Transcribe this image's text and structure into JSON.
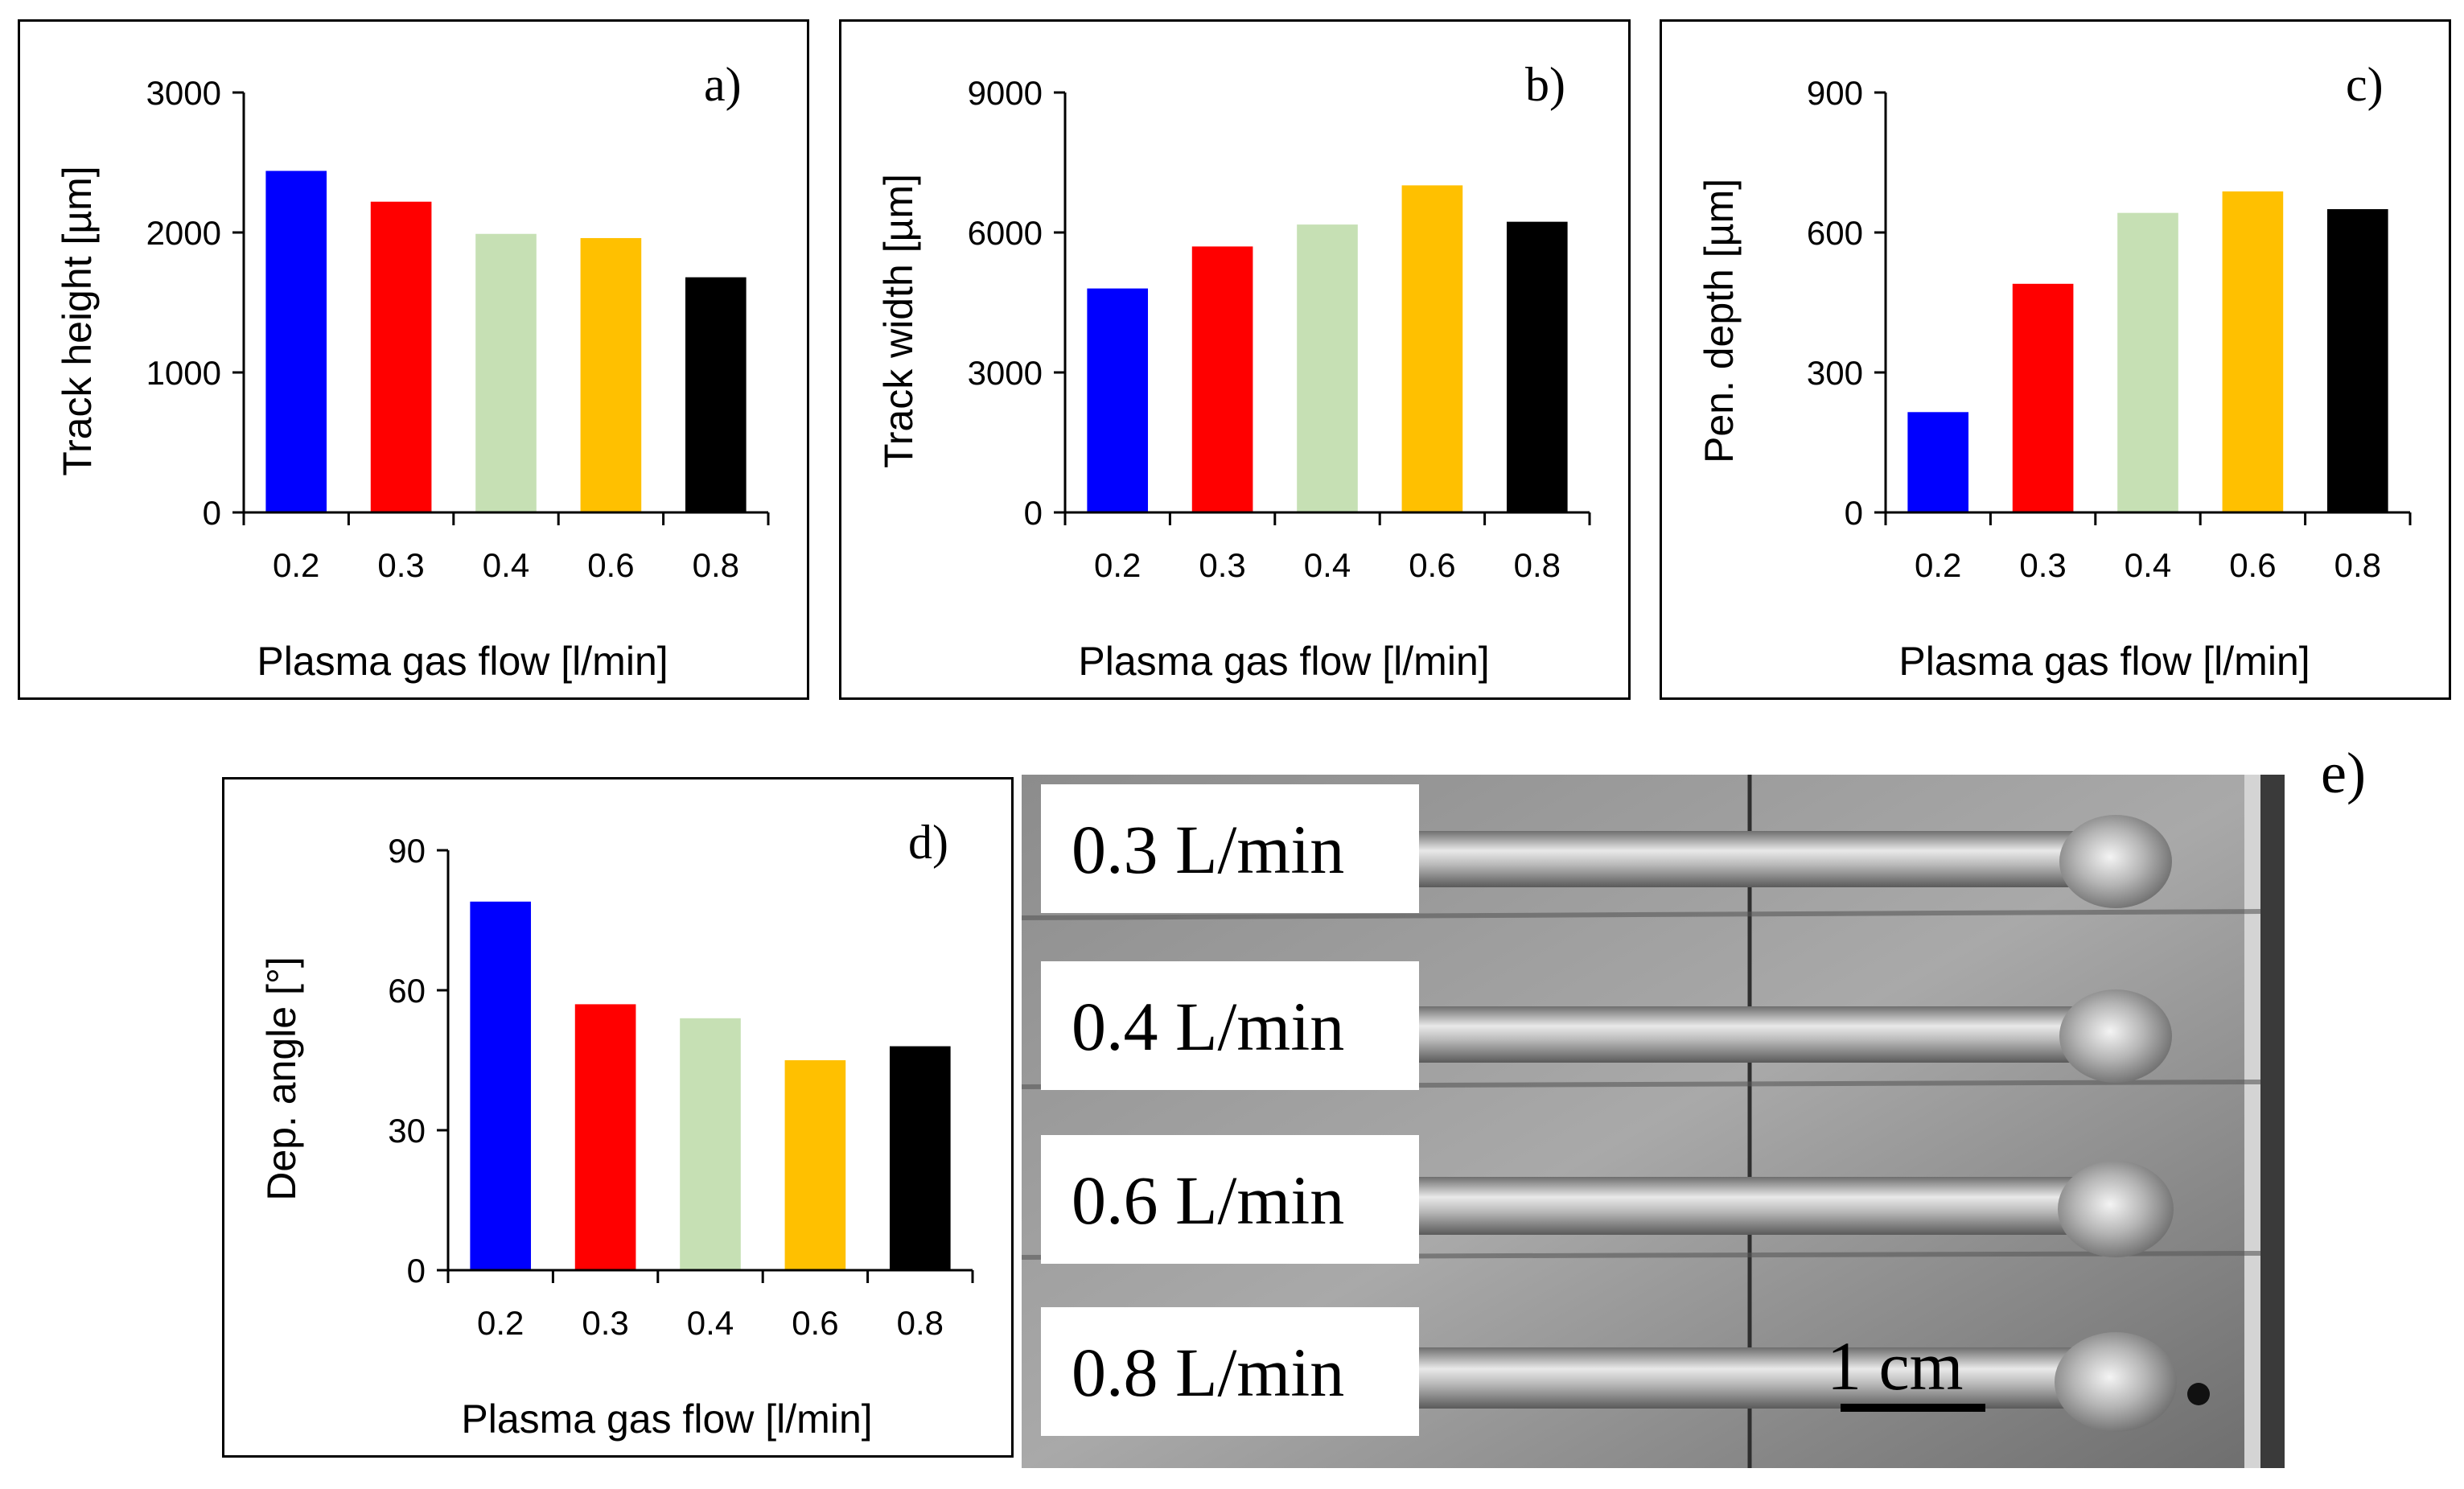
{
  "chart_data": [
    {
      "id": "a",
      "type": "bar",
      "panel_label": "a)",
      "ylabel": "Track height [µm]",
      "xlabel": "Plasma gas flow [l/min]",
      "categories": [
        "0.2",
        "0.3",
        "0.4",
        "0.6",
        "0.8"
      ],
      "values": [
        2440,
        2220,
        1990,
        1960,
        1680
      ],
      "colors": [
        "#0000FF",
        "#FF0000",
        "#C6E0B4",
        "#FFC000",
        "#000000"
      ],
      "ylim": [
        0,
        3000
      ],
      "yticks": [
        "0",
        "1000",
        "2000",
        "3000"
      ]
    },
    {
      "id": "b",
      "type": "bar",
      "panel_label": "b)",
      "ylabel": "Track width [µm]",
      "xlabel": "Plasma gas flow [l/min]",
      "categories": [
        "0.2",
        "0.3",
        "0.4",
        "0.6",
        "0.8"
      ],
      "values": [
        4800,
        5700,
        6170,
        7010,
        6230
      ],
      "colors": [
        "#0000FF",
        "#FF0000",
        "#C6E0B4",
        "#FFC000",
        "#000000"
      ],
      "ylim": [
        0,
        9000
      ],
      "yticks": [
        "0",
        "3000",
        "6000",
        "9000"
      ]
    },
    {
      "id": "c",
      "type": "bar",
      "panel_label": "c)",
      "ylabel": "Pen. depth [µm]",
      "xlabel": "Plasma gas flow [l/min]",
      "categories": [
        "0.2",
        "0.3",
        "0.4",
        "0.6",
        "0.8"
      ],
      "values": [
        215,
        490,
        642,
        688,
        650
      ],
      "colors": [
        "#0000FF",
        "#FF0000",
        "#C6E0B4",
        "#FFC000",
        "#000000"
      ],
      "ylim": [
        0,
        900
      ],
      "yticks": [
        "0",
        "300",
        "600",
        "900"
      ]
    },
    {
      "id": "d",
      "type": "bar",
      "panel_label": "d)",
      "ylabel": "Dep. angle [°]",
      "xlabel": "Plasma gas flow [l/min]",
      "categories": [
        "0.2",
        "0.3",
        "0.4",
        "0.6",
        "0.8"
      ],
      "values": [
        79,
        57,
        54,
        45,
        48
      ],
      "colors": [
        "#0000FF",
        "#FF0000",
        "#C6E0B4",
        "#FFC000",
        "#000000"
      ],
      "ylim": [
        0,
        90
      ],
      "yticks": [
        "0",
        "30",
        "60",
        "90"
      ]
    }
  ],
  "photo": {
    "panel_label": "e)",
    "labels": [
      "0.3 L/min",
      "0.4 L/min",
      "0.6 L/min",
      "0.8 L/min"
    ],
    "scale_bar": "1 cm"
  }
}
